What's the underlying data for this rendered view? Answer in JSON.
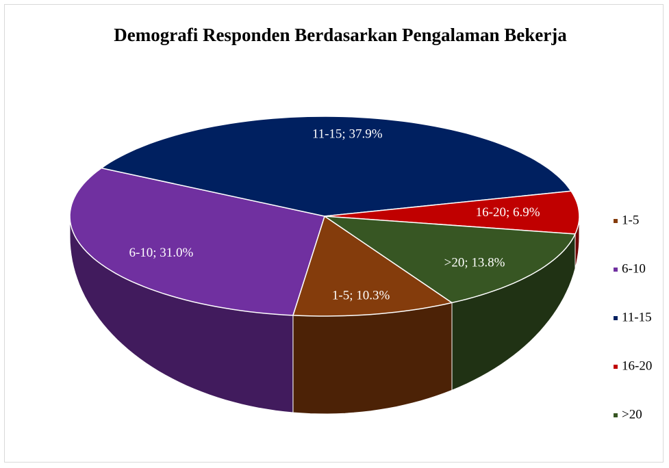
{
  "chart_data": {
    "type": "pie",
    "title": "Demografi Responden Berdasarkan Pengalaman Bekerja",
    "categories": [
      "1-5",
      "6-10",
      "11-15",
      "16-20",
      ">20"
    ],
    "values": [
      10.3,
      31.0,
      37.9,
      6.9,
      13.8
    ],
    "value_labels": [
      "1-5; 10.3%",
      "6-10; 31.0%",
      "11-15; 37.9%",
      "16-20; 6.9%",
      ">20; 13.8%"
    ],
    "colors": [
      "#843c0c",
      "#7030a0",
      "#002060",
      "#c00000",
      "#375623"
    ],
    "legend": "right"
  }
}
